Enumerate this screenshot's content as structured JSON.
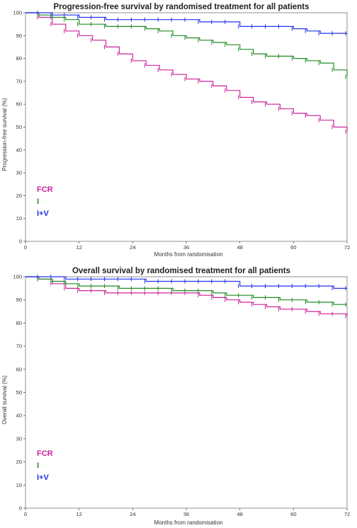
{
  "chart_data": [
    {
      "type": "line",
      "title": "Progression-free survival by randomised treatment for all patients",
      "xlabel": "Months from randomisation",
      "ylabel": "Progression-free survival (%)",
      "xlim": [
        0,
        72
      ],
      "ylim": [
        0,
        100
      ],
      "xticks": [
        0,
        12,
        24,
        36,
        48,
        60,
        72
      ],
      "yticks": [
        0,
        10,
        20,
        30,
        40,
        50,
        60,
        70,
        80,
        90,
        100
      ],
      "legend_position": "bottom-left",
      "series": [
        {
          "name": "FCR",
          "color": "#cc2299",
          "x": [
            0,
            3,
            6,
            9,
            12,
            15,
            18,
            21,
            24,
            27,
            30,
            33,
            36,
            39,
            42,
            45,
            48,
            51,
            54,
            57,
            60,
            63,
            66,
            69,
            72
          ],
          "y": [
            100,
            98,
            95,
            92,
            90,
            88,
            85,
            82,
            79,
            77,
            75,
            73,
            71,
            70,
            68,
            66,
            63,
            61,
            60,
            58,
            56,
            55,
            53,
            50,
            48
          ]
        },
        {
          "name": "I",
          "color": "#228b22",
          "x": [
            0,
            3,
            6,
            9,
            12,
            15,
            18,
            21,
            24,
            27,
            30,
            33,
            36,
            39,
            42,
            45,
            48,
            51,
            54,
            57,
            60,
            63,
            66,
            69,
            72
          ],
          "y": [
            100,
            99,
            98,
            97,
            95,
            95,
            94,
            94,
            94,
            93,
            92,
            90,
            89,
            88,
            87,
            86,
            84,
            82,
            81,
            81,
            80,
            79,
            78,
            75,
            72
          ]
        },
        {
          "name": "I+V",
          "color": "#2233ee",
          "x": [
            0,
            3,
            6,
            9,
            12,
            15,
            18,
            21,
            24,
            27,
            30,
            33,
            36,
            39,
            42,
            45,
            48,
            51,
            54,
            57,
            60,
            63,
            66,
            69,
            72
          ],
          "y": [
            100,
            100,
            99,
            99,
            98,
            98,
            97,
            97,
            97,
            97,
            97,
            97,
            97,
            96,
            96,
            96,
            94,
            94,
            94,
            94,
            93,
            92,
            91,
            91,
            91
          ]
        }
      ]
    },
    {
      "type": "line",
      "title": "Overall survival by randomised treatment for all patients",
      "xlabel": "Months from randomisation",
      "ylabel": "Overall survival (%)",
      "xlim": [
        0,
        72
      ],
      "ylim": [
        0,
        100
      ],
      "xticks": [
        0,
        12,
        24,
        36,
        48,
        60,
        72
      ],
      "yticks": [
        0,
        10,
        20,
        30,
        40,
        50,
        60,
        70,
        80,
        90,
        100
      ],
      "legend_position": "bottom-left",
      "series": [
        {
          "name": "FCR",
          "color": "#cc2299",
          "x": [
            0,
            3,
            6,
            9,
            12,
            15,
            18,
            21,
            24,
            27,
            30,
            33,
            36,
            39,
            42,
            45,
            48,
            51,
            54,
            57,
            60,
            63,
            66,
            69,
            72
          ],
          "y": [
            100,
            99,
            97,
            95,
            94,
            94,
            93,
            93,
            93,
            93,
            93,
            93,
            93,
            92,
            91,
            90,
            89,
            88,
            87,
            86,
            86,
            85,
            84,
            84,
            83
          ]
        },
        {
          "name": "I",
          "color": "#228b22",
          "x": [
            0,
            3,
            6,
            9,
            12,
            15,
            18,
            21,
            24,
            27,
            30,
            33,
            36,
            39,
            42,
            45,
            48,
            51,
            54,
            57,
            60,
            63,
            66,
            69,
            72
          ],
          "y": [
            100,
            99,
            98,
            97,
            96,
            96,
            96,
            95,
            95,
            95,
            95,
            94,
            94,
            94,
            93,
            92,
            92,
            91,
            91,
            90,
            90,
            89,
            89,
            88,
            88
          ]
        },
        {
          "name": "I+V",
          "color": "#2233ee",
          "x": [
            0,
            3,
            6,
            9,
            12,
            15,
            18,
            21,
            24,
            27,
            30,
            33,
            36,
            39,
            42,
            45,
            48,
            51,
            54,
            57,
            60,
            63,
            66,
            69,
            72
          ],
          "y": [
            100,
            100,
            100,
            99,
            99,
            99,
            99,
            99,
            99,
            98,
            98,
            98,
            98,
            98,
            98,
            98,
            96,
            96,
            96,
            96,
            96,
            96,
            96,
            95,
            95
          ]
        }
      ]
    }
  ]
}
